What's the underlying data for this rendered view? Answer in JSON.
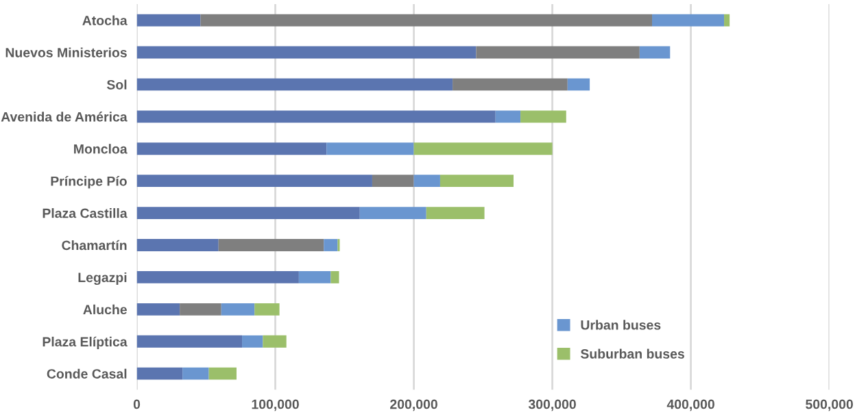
{
  "chart_data": {
    "type": "bar",
    "orientation": "horizontal",
    "stacked": true,
    "categories": [
      "Atocha",
      "Nuevos Ministerios",
      "Sol",
      "Avenida de América",
      "Moncloa",
      "Príncipe Pío",
      "Plaza Castilla",
      "Chamartín",
      "Legazpi",
      "Aluche",
      "Plaza Elíptica",
      "Conde Casal"
    ],
    "series": [
      {
        "color": "#5b75b0",
        "values": [
          46000,
          245000,
          228000,
          259000,
          137000,
          170000,
          161000,
          59000,
          117000,
          31000,
          76000,
          33000
        ]
      },
      {
        "color": "#7f7f7f",
        "values": [
          326000,
          118000,
          83000,
          0,
          0,
          30000,
          0,
          76000,
          0,
          30000,
          0,
          0
        ]
      },
      {
        "name": "Urban buses",
        "color": "#6a96d0",
        "values": [
          52000,
          22000,
          16000,
          18000,
          63000,
          19000,
          48000,
          10000,
          23000,
          24000,
          15000,
          19000
        ]
      },
      {
        "name": "Suburban buses",
        "color": "#9bbf6a",
        "values": [
          4000,
          0,
          0,
          33000,
          100000,
          53000,
          42000,
          1500,
          6000,
          18000,
          17000,
          20000
        ]
      }
    ],
    "xlim": [
      0,
      500000
    ],
    "xticks": [
      {
        "value": 0,
        "label": "0"
      },
      {
        "value": 100000,
        "label": "100,000"
      },
      {
        "value": 200000,
        "label": "200,000"
      },
      {
        "value": 300000,
        "label": "300,000"
      },
      {
        "value": 400000,
        "label": "400,000"
      },
      {
        "value": 500000,
        "label": "500,000"
      }
    ],
    "grid": "x",
    "legend": "bottom right"
  }
}
